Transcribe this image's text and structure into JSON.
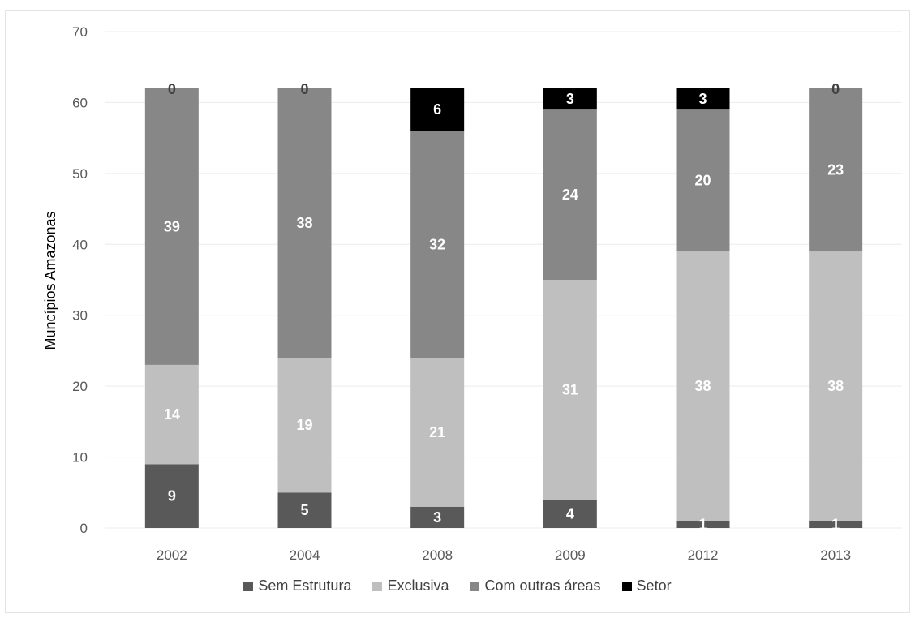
{
  "chart_data": {
    "type": "bar",
    "stacked": true,
    "categories": [
      "2002",
      "2004",
      "2008",
      "2009",
      "2012",
      "2013"
    ],
    "series": [
      {
        "name": "Sem Estrutura",
        "color": "#595959",
        "label_color": "#ffffff",
        "values": [
          9,
          5,
          3,
          4,
          1,
          1
        ]
      },
      {
        "name": "Exclusiva",
        "color": "#bfbfbf",
        "label_color": "#ffffff",
        "values": [
          14,
          19,
          21,
          31,
          38,
          38
        ]
      },
      {
        "name": "Com outras áreas",
        "color": "#878787",
        "label_color": "#ffffff",
        "values": [
          39,
          38,
          32,
          24,
          20,
          23
        ]
      },
      {
        "name": "Setor",
        "color": "#000000",
        "label_color": "#ffffff",
        "values": [
          0,
          0,
          6,
          3,
          3,
          0
        ]
      }
    ],
    "ylabel": "Muncípios Amazonas",
    "xlabel": "",
    "ylim": [
      0,
      70
    ],
    "yticks": [
      0,
      10,
      20,
      30,
      40,
      50,
      60,
      70
    ],
    "grid": true,
    "legend": "bottom"
  }
}
